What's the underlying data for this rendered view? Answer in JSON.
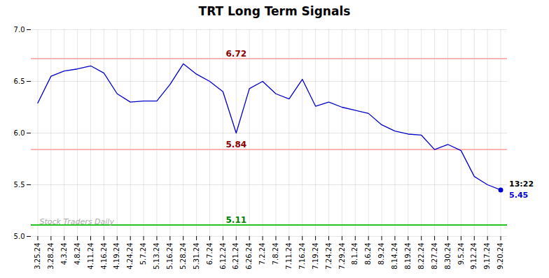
{
  "chart_data": {
    "type": "line",
    "title": "TRT Long Term Signals",
    "categories": [
      "3.25.24",
      "3.28.24",
      "4.3.24",
      "4.8.24",
      "4.11.24",
      "4.16.24",
      "4.19.24",
      "4.24.24",
      "5.7.24",
      "5.13.24",
      "5.16.24",
      "5.28.24",
      "5.31.24",
      "6.7.24",
      "6.12.24",
      "6.21.24",
      "6.26.24",
      "7.2.24",
      "7.8.24",
      "7.11.24",
      "7.16.24",
      "7.19.24",
      "7.24.24",
      "7.29.24",
      "8.1.24",
      "8.6.24",
      "8.9.24",
      "8.14.24",
      "8.19.24",
      "8.22.24",
      "8.27.24",
      "8.30.24",
      "9.5.24",
      "9.12.24",
      "9.17.24",
      "9.20.24"
    ],
    "values": [
      6.29,
      6.55,
      6.6,
      6.62,
      6.65,
      6.58,
      6.38,
      6.3,
      6.31,
      6.31,
      6.47,
      6.67,
      6.57,
      6.5,
      6.4,
      6.0,
      6.43,
      6.5,
      6.38,
      6.33,
      6.52,
      6.26,
      6.3,
      6.25,
      6.22,
      6.19,
      6.08,
      6.02,
      5.99,
      5.98,
      5.84,
      5.89,
      5.83,
      5.58,
      5.5,
      5.45
    ],
    "color": "#0000cc",
    "ylim": [
      5.0,
      7.0
    ],
    "yticks": [
      {
        "value": 5,
        "label": "5.0"
      },
      5.5,
      {
        "value": 6,
        "label": "6.0"
      },
      6.5,
      {
        "value": 7,
        "label": "7.0"
      }
    ],
    "grid": true,
    "reference_lines": [
      {
        "value": 6.72,
        "label": "6.72",
        "color": "#ffaaaa",
        "label_color": "darkred"
      },
      {
        "value": 5.84,
        "label": "5.84",
        "color": "#ffaaaa",
        "label_color": "darkred"
      },
      {
        "value": 5.11,
        "label": "5.11",
        "color": "#00bb00",
        "label_color": "green"
      }
    ],
    "annotations": [
      {
        "text": "13:22",
        "x": "9.20.24",
        "y": 5.45,
        "color": "black",
        "marker": "circle"
      },
      {
        "text": "5.45",
        "x": "9.20.24",
        "y": 5.45,
        "color": "#0000cc"
      }
    ],
    "watermark": {
      "text": "Stock Traders Daily",
      "color": "#aaaaaa"
    }
  }
}
